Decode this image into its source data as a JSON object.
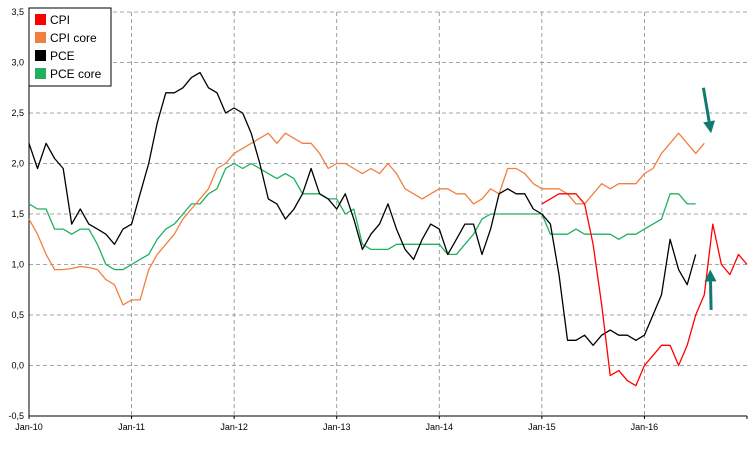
{
  "chart_data": {
    "type": "line",
    "title": "",
    "xlabel": "",
    "ylabel": "",
    "ylim": [
      -0.5,
      3.5
    ],
    "y_ticks": [
      "-0,5",
      "0,0",
      "0,5",
      "1,0",
      "1,5",
      "2,0",
      "2,5",
      "3,0",
      "3,5"
    ],
    "x_tick_labels": [
      "Jan-10",
      "Jan-11",
      "Jan-12",
      "Jan-13",
      "Jan-14",
      "Jan-15",
      "Jan-16"
    ],
    "x_unit": "months since Jan-10",
    "grid": "horizontal and vertical dashed",
    "legend_position": "top-left",
    "series": [
      {
        "name": "CPI",
        "color": "#ff0000",
        "values": [
          [
            60,
            1.6
          ],
          [
            62,
            1.7
          ],
          [
            63,
            1.7
          ],
          [
            64,
            1.7
          ],
          [
            65,
            1.6
          ],
          [
            66,
            1.2
          ],
          [
            67,
            0.6
          ],
          [
            68,
            -0.1
          ],
          [
            69,
            -0.05
          ],
          [
            70,
            -0.15
          ],
          [
            71,
            -0.2
          ],
          [
            72,
            0.0
          ],
          [
            73,
            0.1
          ],
          [
            74,
            0.2
          ],
          [
            75,
            0.2
          ],
          [
            76,
            0.0
          ],
          [
            77,
            0.2
          ],
          [
            78,
            0.5
          ],
          [
            79,
            0.7
          ],
          [
            80,
            1.4
          ],
          [
            81,
            1.0
          ],
          [
            82,
            0.9
          ],
          [
            83,
            1.1
          ],
          [
            84,
            1.0
          ]
        ]
      },
      {
        "name": "CPI core",
        "color": "#f08040",
        "values": [
          [
            0,
            1.45
          ],
          [
            1,
            1.3
          ],
          [
            2,
            1.1
          ],
          [
            3,
            0.95
          ],
          [
            4,
            0.95
          ],
          [
            5,
            0.96
          ],
          [
            6,
            0.98
          ],
          [
            7,
            0.97
          ],
          [
            8,
            0.95
          ],
          [
            9,
            0.85
          ],
          [
            10,
            0.8
          ],
          [
            11,
            0.6
          ],
          [
            12,
            0.65
          ],
          [
            13,
            0.65
          ],
          [
            14,
            0.95
          ],
          [
            15,
            1.1
          ],
          [
            16,
            1.2
          ],
          [
            17,
            1.3
          ],
          [
            18,
            1.45
          ],
          [
            19,
            1.55
          ],
          [
            20,
            1.65
          ],
          [
            21,
            1.75
          ],
          [
            22,
            1.95
          ],
          [
            23,
            2.0
          ],
          [
            24,
            2.1
          ],
          [
            25,
            2.15
          ],
          [
            26,
            2.2
          ],
          [
            27,
            2.25
          ],
          [
            28,
            2.3
          ],
          [
            29,
            2.2
          ],
          [
            30,
            2.3
          ],
          [
            31,
            2.25
          ],
          [
            32,
            2.2
          ],
          [
            33,
            2.2
          ],
          [
            34,
            2.1
          ],
          [
            35,
            1.95
          ],
          [
            36,
            2.0
          ],
          [
            37,
            2.0
          ],
          [
            38,
            1.95
          ],
          [
            39,
            1.9
          ],
          [
            40,
            1.95
          ],
          [
            41,
            1.9
          ],
          [
            42,
            2.0
          ],
          [
            43,
            1.9
          ],
          [
            44,
            1.75
          ],
          [
            45,
            1.7
          ],
          [
            46,
            1.65
          ],
          [
            47,
            1.7
          ],
          [
            48,
            1.75
          ],
          [
            49,
            1.75
          ],
          [
            50,
            1.7
          ],
          [
            51,
            1.7
          ],
          [
            52,
            1.6
          ],
          [
            53,
            1.65
          ],
          [
            54,
            1.75
          ],
          [
            55,
            1.7
          ],
          [
            56,
            1.95
          ],
          [
            57,
            1.95
          ],
          [
            58,
            1.9
          ],
          [
            59,
            1.8
          ],
          [
            60,
            1.75
          ],
          [
            61,
            1.75
          ],
          [
            62,
            1.75
          ],
          [
            63,
            1.7
          ],
          [
            64,
            1.6
          ],
          [
            65,
            1.6
          ],
          [
            66,
            1.7
          ],
          [
            67,
            1.8
          ],
          [
            68,
            1.75
          ],
          [
            69,
            1.8
          ],
          [
            70,
            1.8
          ],
          [
            71,
            1.8
          ],
          [
            72,
            1.9
          ],
          [
            73,
            1.95
          ],
          [
            74,
            2.1
          ],
          [
            75,
            2.2
          ],
          [
            76,
            2.3
          ],
          [
            77,
            2.2
          ],
          [
            78,
            2.1
          ],
          [
            79,
            2.2
          ]
        ]
      },
      {
        "name": "PCE",
        "color": "#000000",
        "values": [
          [
            0,
            2.2
          ],
          [
            1,
            1.95
          ],
          [
            2,
            2.2
          ],
          [
            3,
            2.05
          ],
          [
            4,
            1.95
          ],
          [
            5,
            1.4
          ],
          [
            6,
            1.55
          ],
          [
            7,
            1.4
          ],
          [
            8,
            1.35
          ],
          [
            9,
            1.3
          ],
          [
            10,
            1.2
          ],
          [
            11,
            1.35
          ],
          [
            12,
            1.4
          ],
          [
            13,
            1.7
          ],
          [
            14,
            2.0
          ],
          [
            15,
            2.4
          ],
          [
            16,
            2.7
          ],
          [
            17,
            2.7
          ],
          [
            18,
            2.75
          ],
          [
            19,
            2.85
          ],
          [
            20,
            2.9
          ],
          [
            21,
            2.75
          ],
          [
            22,
            2.7
          ],
          [
            23,
            2.5
          ],
          [
            24,
            2.55
          ],
          [
            25,
            2.5
          ],
          [
            26,
            2.3
          ],
          [
            27,
            2.0
          ],
          [
            28,
            1.65
          ],
          [
            29,
            1.6
          ],
          [
            30,
            1.45
          ],
          [
            31,
            1.55
          ],
          [
            32,
            1.7
          ],
          [
            33,
            1.95
          ],
          [
            34,
            1.7
          ],
          [
            35,
            1.65
          ],
          [
            36,
            1.55
          ],
          [
            37,
            1.7
          ],
          [
            38,
            1.45
          ],
          [
            39,
            1.15
          ],
          [
            40,
            1.3
          ],
          [
            41,
            1.4
          ],
          [
            42,
            1.6
          ],
          [
            43,
            1.35
          ],
          [
            44,
            1.15
          ],
          [
            45,
            1.05
          ],
          [
            46,
            1.25
          ],
          [
            47,
            1.4
          ],
          [
            48,
            1.35
          ],
          [
            49,
            1.1
          ],
          [
            50,
            1.25
          ],
          [
            51,
            1.4
          ],
          [
            52,
            1.4
          ],
          [
            53,
            1.1
          ],
          [
            54,
            1.35
          ],
          [
            55,
            1.7
          ],
          [
            56,
            1.75
          ],
          [
            57,
            1.7
          ],
          [
            58,
            1.7
          ],
          [
            59,
            1.55
          ],
          [
            60,
            1.5
          ],
          [
            61,
            1.4
          ],
          [
            62,
            0.9
          ],
          [
            63,
            0.25
          ],
          [
            64,
            0.25
          ],
          [
            65,
            0.3
          ],
          [
            66,
            0.2
          ],
          [
            67,
            0.3
          ],
          [
            68,
            0.35
          ],
          [
            69,
            0.3
          ],
          [
            70,
            0.3
          ],
          [
            71,
            0.25
          ],
          [
            72,
            0.3
          ],
          [
            73,
            0.5
          ],
          [
            74,
            0.7
          ],
          [
            75,
            1.25
          ],
          [
            76,
            0.95
          ],
          [
            77,
            0.8
          ],
          [
            78,
            1.1
          ]
        ]
      },
      {
        "name": "PCE core",
        "color": "#20b060",
        "values": [
          [
            0,
            1.6
          ],
          [
            1,
            1.55
          ],
          [
            2,
            1.55
          ],
          [
            3,
            1.35
          ],
          [
            4,
            1.35
          ],
          [
            5,
            1.3
          ],
          [
            6,
            1.35
          ],
          [
            7,
            1.35
          ],
          [
            8,
            1.2
          ],
          [
            9,
            1.0
          ],
          [
            10,
            0.95
          ],
          [
            11,
            0.95
          ],
          [
            12,
            1.0
          ],
          [
            13,
            1.05
          ],
          [
            14,
            1.1
          ],
          [
            15,
            1.25
          ],
          [
            16,
            1.35
          ],
          [
            17,
            1.4
          ],
          [
            18,
            1.5
          ],
          [
            19,
            1.6
          ],
          [
            20,
            1.6
          ],
          [
            21,
            1.7
          ],
          [
            22,
            1.75
          ],
          [
            23,
            1.95
          ],
          [
            24,
            2.0
          ],
          [
            25,
            1.95
          ],
          [
            26,
            2.0
          ],
          [
            27,
            1.95
          ],
          [
            28,
            1.9
          ],
          [
            29,
            1.85
          ],
          [
            30,
            1.9
          ],
          [
            31,
            1.85
          ],
          [
            32,
            1.7
          ],
          [
            33,
            1.7
          ],
          [
            34,
            1.7
          ],
          [
            35,
            1.65
          ],
          [
            36,
            1.65
          ],
          [
            37,
            1.5
          ],
          [
            38,
            1.55
          ],
          [
            39,
            1.2
          ],
          [
            40,
            1.15
          ],
          [
            41,
            1.15
          ],
          [
            42,
            1.15
          ],
          [
            43,
            1.2
          ],
          [
            44,
            1.2
          ],
          [
            45,
            1.2
          ],
          [
            46,
            1.2
          ],
          [
            47,
            1.2
          ],
          [
            48,
            1.2
          ],
          [
            49,
            1.1
          ],
          [
            50,
            1.1
          ],
          [
            51,
            1.2
          ],
          [
            52,
            1.3
          ],
          [
            53,
            1.45
          ],
          [
            54,
            1.5
          ],
          [
            55,
            1.5
          ],
          [
            56,
            1.5
          ],
          [
            57,
            1.5
          ],
          [
            58,
            1.5
          ],
          [
            59,
            1.5
          ],
          [
            60,
            1.5
          ],
          [
            61,
            1.3
          ],
          [
            62,
            1.3
          ],
          [
            63,
            1.3
          ],
          [
            64,
            1.35
          ],
          [
            65,
            1.3
          ],
          [
            66,
            1.3
          ],
          [
            67,
            1.3
          ],
          [
            68,
            1.3
          ],
          [
            69,
            1.25
          ],
          [
            70,
            1.3
          ],
          [
            71,
            1.3
          ],
          [
            72,
            1.35
          ],
          [
            73,
            1.4
          ],
          [
            74,
            1.45
          ],
          [
            75,
            1.7
          ],
          [
            76,
            1.7
          ],
          [
            77,
            1.6
          ],
          [
            78,
            1.6
          ]
        ]
      }
    ],
    "annotations": [
      {
        "name": "down-arrow",
        "color": "#117a70",
        "from": [
          78.9,
          2.75
        ],
        "to": [
          79.8,
          2.3
        ]
      },
      {
        "name": "up-arrow",
        "color": "#117a70",
        "from": [
          79.8,
          0.55
        ],
        "to": [
          79.7,
          0.95
        ]
      }
    ]
  }
}
